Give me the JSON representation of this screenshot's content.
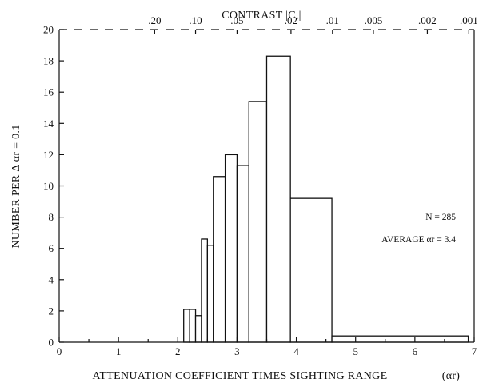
{
  "chart_data": {
    "type": "bar",
    "title": "",
    "xlabel": "ATTENUATION COEFFICIENT TIMES SIGHTING RANGE",
    "xlabel_symbol": "(αr)",
    "ylabel": "NUMBER PER Δ αr = 0.1",
    "top_axis_label": "CONTRAST |C,|",
    "xlim": [
      0,
      7
    ],
    "ylim": [
      0,
      20
    ],
    "x_ticks": [
      "0",
      "1",
      "2",
      "3",
      "4",
      "5",
      "6",
      "7"
    ],
    "y_ticks": [
      "0",
      "2",
      "4",
      "6",
      "8",
      "10",
      "12",
      "14",
      "16",
      "18",
      "20"
    ],
    "top_ticks": [
      {
        "label": ".20",
        "at": 1.61
      },
      {
        "label": ".10",
        "at": 2.3
      },
      {
        "label": ".05",
        "at": 3.0
      },
      {
        "label": ".02",
        "at": 3.91
      },
      {
        "label": ".01",
        "at": 4.61
      },
      {
        "label": ".005",
        "at": 5.3
      },
      {
        "label": ".002",
        "at": 6.21
      },
      {
        "label": ".001",
        "at": 6.91
      }
    ],
    "bins": [
      {
        "x0": 0.0,
        "x1": 2.1,
        "value": 0.0
      },
      {
        "x0": 2.1,
        "x1": 2.2,
        "value": 2.1
      },
      {
        "x0": 2.2,
        "x1": 2.3,
        "value": 2.1
      },
      {
        "x0": 2.3,
        "x1": 2.4,
        "value": 1.7
      },
      {
        "x0": 2.4,
        "x1": 2.5,
        "value": 6.6
      },
      {
        "x0": 2.5,
        "x1": 2.6,
        "value": 6.2
      },
      {
        "x0": 2.6,
        "x1": 2.8,
        "value": 10.6
      },
      {
        "x0": 2.8,
        "x1": 3.0,
        "value": 12.0
      },
      {
        "x0": 3.0,
        "x1": 3.2,
        "value": 11.3
      },
      {
        "x0": 3.2,
        "x1": 3.5,
        "value": 15.4
      },
      {
        "x0": 3.5,
        "x1": 3.9,
        "value": 18.3
      },
      {
        "x0": 3.9,
        "x1": 4.6,
        "value": 9.2
      },
      {
        "x0": 4.6,
        "x1": 6.9,
        "value": 0.4
      }
    ],
    "annotations": {
      "n": "N = 285",
      "average": "AVERAGE αr = 3.4"
    }
  }
}
